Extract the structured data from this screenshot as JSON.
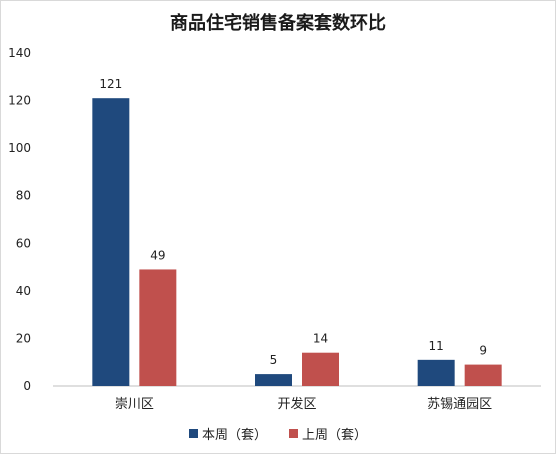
{
  "chart_data": {
    "type": "bar",
    "title": "商品住宅销售备案套数环比",
    "categories": [
      "崇川区",
      "开发区",
      "苏锡通园区"
    ],
    "series": [
      {
        "name": "本周（套）",
        "values": [
          121,
          5,
          11
        ],
        "color": "#1f497d"
      },
      {
        "name": "上周（套）",
        "values": [
          49,
          14,
          9
        ],
        "color": "#c0504d"
      }
    ],
    "ylim": [
      0,
      140
    ],
    "yticks": [
      0,
      20,
      40,
      60,
      80,
      100,
      120,
      140
    ],
    "grid": false,
    "legend_position": "bottom"
  }
}
